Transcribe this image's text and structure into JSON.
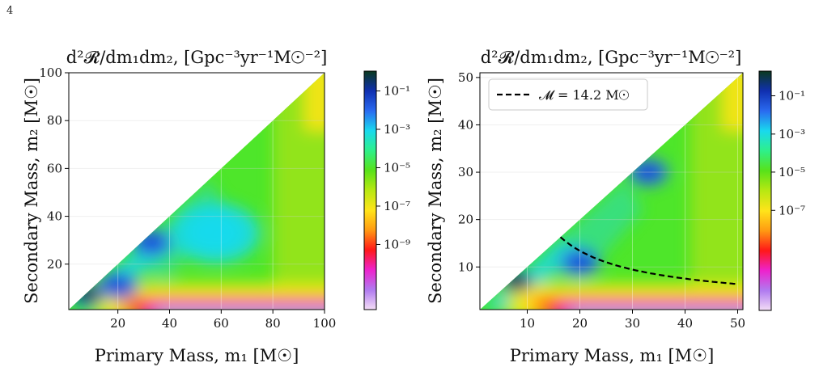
{
  "page_number": "4",
  "chart_data": [
    {
      "type": "heatmap",
      "title": "d²𝓡/dm₁dm₂, [Gpc⁻³yr⁻¹M☉⁻²]",
      "xlabel": "Primary Mass, m₁ [M☉]",
      "ylabel": "Secondary Mass, m₂ [M☉]",
      "xlim": [
        1,
        100
      ],
      "ylim": [
        1,
        100
      ],
      "xticks": [
        20,
        40,
        60,
        80,
        100
      ],
      "yticks": [
        20,
        40,
        60,
        80,
        100
      ],
      "grid": true,
      "colorbar_scale": "log",
      "colorbar_ticks": [
        "10⁻¹",
        "10⁻³",
        "10⁻⁵",
        "10⁻⁷",
        "10⁻⁹"
      ],
      "colormap": [
        "#0a3a1e",
        "#1030b0",
        "#2a6af0",
        "#19d9ee",
        "#2ef08a",
        "#58e21a",
        "#b8e812",
        "#ffe41a",
        "#ff9a12",
        "#ff1818",
        "#ee22cc",
        "#b07af0",
        "#f4ddf6"
      ],
      "peaks": [
        {
          "m1": 8,
          "m2": 7,
          "level": "dark-green"
        },
        {
          "m1": 20,
          "m2": 11,
          "level": "blue"
        },
        {
          "m1": 33,
          "m2": 29,
          "level": "blue"
        },
        {
          "m1": 58,
          "m2": 33,
          "level": "cyan"
        }
      ],
      "legend": []
    },
    {
      "type": "heatmap",
      "title": "d²𝓡/dm₁dm₂, [Gpc⁻³yr⁻¹M☉⁻²]",
      "xlabel": "Primary Mass, m₁ [M☉]",
      "ylabel": "Secondary Mass, m₂ [M☉]",
      "xlim": [
        1,
        51
      ],
      "ylim": [
        1,
        51
      ],
      "xticks": [
        10,
        20,
        30,
        40,
        50
      ],
      "yticks": [
        10,
        20,
        30,
        40,
        50
      ],
      "grid": true,
      "colorbar_scale": "log",
      "colorbar_ticks": [
        "10⁻¹",
        "10⁻³",
        "10⁻⁵",
        "10⁻⁷"
      ],
      "colormap": [
        "#0a3a1e",
        "#1030b0",
        "#2a6af0",
        "#19d9ee",
        "#2ef08a",
        "#58e21a",
        "#b8e812",
        "#ffe41a",
        "#ff9a12",
        "#ff1818",
        "#ee22cc",
        "#b07af0",
        "#f4ddf6"
      ],
      "peaks": [
        {
          "m1": 8,
          "m2": 7,
          "level": "dark-green"
        },
        {
          "m1": 20,
          "m2": 11,
          "level": "blue"
        },
        {
          "m1": 33,
          "m2": 30,
          "level": "blue"
        }
      ],
      "chirp_mass_curve": {
        "chirp_mass": 14.2,
        "style": "dashed",
        "color": "#000000",
        "m1_range": [
          16.3,
          50
        ]
      },
      "legend": [
        {
          "label": "𝓜 = 14.2 M☉",
          "style": "dashed",
          "color": "#000000",
          "position": "top-left"
        }
      ]
    }
  ]
}
